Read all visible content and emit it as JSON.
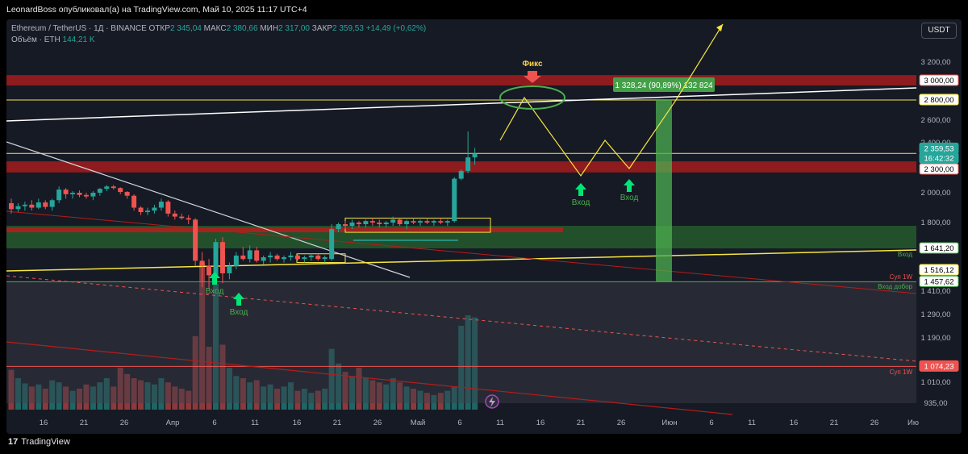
{
  "header": {
    "publish_line": "LeonardBoss опубликовал(а) на TradingView.com, Май 10, 2025 11:17 UTC+4"
  },
  "legend": {
    "symbol_line": "Ethereum / TetherUS · 1Д · BINANCE",
    "open_label": "ОТКР",
    "open_value": "2 345,04",
    "high_label": "МАКС",
    "high_value": "2 380,66",
    "low_label": "МИН",
    "low_value": "2 317,00",
    "close_label": "ЗАКР",
    "close_value": "2 359,53",
    "change": "+14,49 (+0,62%)",
    "volume_label": "Объём · ETH",
    "volume_value": "144,21 K"
  },
  "currency_button": "USDT",
  "footer": {
    "logo": "17",
    "brand": "TradingView"
  },
  "colors": {
    "background": "#161a24",
    "up": "#26a69a",
    "down": "#ef5350",
    "yellow": "#f5e642",
    "green_zone": "#4caf50",
    "red_zone": "#b71c1c"
  },
  "chart_data": {
    "type": "candlestick",
    "symbol": "ETHUSDT",
    "timeframe": "1D",
    "y_axis_labels": [
      "3 200,00",
      "2 600,00",
      "2 400,00",
      "2 000,00",
      "1 800,00",
      "1 410,00",
      "1 290,00",
      "1 190,00",
      "1 010,00",
      "935,00"
    ],
    "x_axis_labels": [
      "16",
      "21",
      "26",
      "Апр",
      "6",
      "11",
      "16",
      "21",
      "26",
      "Май",
      "6",
      "11",
      "16",
      "21",
      "26",
      "Июн",
      "6",
      "11",
      "16",
      "21",
      "26",
      "Ию"
    ],
    "price_badges": [
      {
        "value": 3000,
        "label": "3 000,00"
      },
      {
        "value": 2800,
        "label": "2 800,00"
      },
      {
        "value": 2359.53,
        "label": "2 359,53"
      },
      {
        "value": 2359.53,
        "label": "16:42:32"
      },
      {
        "value": 2300,
        "label": "2 300,00"
      },
      {
        "value": 1641.2,
        "label": "1 641,20"
      },
      {
        "value": 1516.12,
        "label": "1 516,12"
      },
      {
        "value": 1457.62,
        "label": "1 457,62"
      },
      {
        "value": 1074.23,
        "label": "1 074,23"
      }
    ],
    "candles": [
      {
        "o": 1930,
        "h": 1960,
        "l": 1860,
        "c": 1890
      },
      {
        "o": 1890,
        "h": 1930,
        "l": 1870,
        "c": 1910
      },
      {
        "o": 1910,
        "h": 1940,
        "l": 1880,
        "c": 1920
      },
      {
        "o": 1920,
        "h": 1950,
        "l": 1880,
        "c": 1900
      },
      {
        "o": 1900,
        "h": 1960,
        "l": 1890,
        "c": 1935
      },
      {
        "o": 1935,
        "h": 1950,
        "l": 1890,
        "c": 1905
      },
      {
        "o": 1905,
        "h": 1960,
        "l": 1880,
        "c": 1950
      },
      {
        "o": 1950,
        "h": 2080,
        "l": 1930,
        "c": 2040
      },
      {
        "o": 2040,
        "h": 2060,
        "l": 1960,
        "c": 1990
      },
      {
        "o": 1990,
        "h": 2020,
        "l": 1960,
        "c": 2000
      },
      {
        "o": 2000,
        "h": 2030,
        "l": 1970,
        "c": 1985
      },
      {
        "o": 1985,
        "h": 2000,
        "l": 1960,
        "c": 1975
      },
      {
        "o": 1975,
        "h": 2020,
        "l": 1950,
        "c": 2000
      },
      {
        "o": 2000,
        "h": 2060,
        "l": 1980,
        "c": 2050
      },
      {
        "o": 2050,
        "h": 2100,
        "l": 2020,
        "c": 2080
      },
      {
        "o": 2080,
        "h": 2100,
        "l": 2040,
        "c": 2060
      },
      {
        "o": 2060,
        "h": 2070,
        "l": 1990,
        "c": 2010
      },
      {
        "o": 2010,
        "h": 2020,
        "l": 1960,
        "c": 1980
      },
      {
        "o": 1980,
        "h": 1990,
        "l": 1880,
        "c": 1900
      },
      {
        "o": 1900,
        "h": 1910,
        "l": 1850,
        "c": 1870
      },
      {
        "o": 1870,
        "h": 1900,
        "l": 1850,
        "c": 1880
      },
      {
        "o": 1880,
        "h": 1920,
        "l": 1860,
        "c": 1900
      },
      {
        "o": 1900,
        "h": 1960,
        "l": 1880,
        "c": 1940
      },
      {
        "o": 1940,
        "h": 1950,
        "l": 1840,
        "c": 1860
      },
      {
        "o": 1860,
        "h": 1880,
        "l": 1820,
        "c": 1840
      },
      {
        "o": 1840,
        "h": 1860,
        "l": 1820,
        "c": 1830
      },
      {
        "o": 1830,
        "h": 1850,
        "l": 1790,
        "c": 1820
      },
      {
        "o": 1820,
        "h": 1830,
        "l": 1540,
        "c": 1570
      },
      {
        "o": 1570,
        "h": 1620,
        "l": 1430,
        "c": 1540
      },
      {
        "o": 1540,
        "h": 1580,
        "l": 1420,
        "c": 1490
      },
      {
        "o": 1490,
        "h": 1700,
        "l": 1470,
        "c": 1680
      },
      {
        "o": 1680,
        "h": 1710,
        "l": 1450,
        "c": 1500
      },
      {
        "o": 1500,
        "h": 1560,
        "l": 1470,
        "c": 1540
      },
      {
        "o": 1540,
        "h": 1620,
        "l": 1520,
        "c": 1600
      },
      {
        "o": 1600,
        "h": 1650,
        "l": 1570,
        "c": 1580
      },
      {
        "o": 1580,
        "h": 1660,
        "l": 1560,
        "c": 1630
      },
      {
        "o": 1630,
        "h": 1650,
        "l": 1560,
        "c": 1570
      },
      {
        "o": 1570,
        "h": 1600,
        "l": 1550,
        "c": 1590
      },
      {
        "o": 1590,
        "h": 1620,
        "l": 1560,
        "c": 1600
      },
      {
        "o": 1600,
        "h": 1610,
        "l": 1570,
        "c": 1580
      },
      {
        "o": 1580,
        "h": 1600,
        "l": 1560,
        "c": 1590
      },
      {
        "o": 1590,
        "h": 1620,
        "l": 1570,
        "c": 1600
      },
      {
        "o": 1600,
        "h": 1610,
        "l": 1570,
        "c": 1580
      },
      {
        "o": 1580,
        "h": 1600,
        "l": 1560,
        "c": 1590
      },
      {
        "o": 1590,
        "h": 1610,
        "l": 1570,
        "c": 1600
      },
      {
        "o": 1600,
        "h": 1610,
        "l": 1570,
        "c": 1580
      },
      {
        "o": 1580,
        "h": 1600,
        "l": 1560,
        "c": 1590
      },
      {
        "o": 1580,
        "h": 1790,
        "l": 1570,
        "c": 1760
      },
      {
        "o": 1760,
        "h": 1800,
        "l": 1740,
        "c": 1790
      },
      {
        "o": 1790,
        "h": 1810,
        "l": 1760,
        "c": 1780
      },
      {
        "o": 1780,
        "h": 1820,
        "l": 1760,
        "c": 1800
      },
      {
        "o": 1800,
        "h": 1810,
        "l": 1770,
        "c": 1790
      },
      {
        "o": 1790,
        "h": 1820,
        "l": 1770,
        "c": 1810
      },
      {
        "o": 1810,
        "h": 1830,
        "l": 1780,
        "c": 1800
      },
      {
        "o": 1800,
        "h": 1820,
        "l": 1770,
        "c": 1790
      },
      {
        "o": 1790,
        "h": 1810,
        "l": 1770,
        "c": 1800
      },
      {
        "o": 1800,
        "h": 1840,
        "l": 1780,
        "c": 1820
      },
      {
        "o": 1820,
        "h": 1830,
        "l": 1780,
        "c": 1790
      },
      {
        "o": 1790,
        "h": 1820,
        "l": 1760,
        "c": 1810
      },
      {
        "o": 1810,
        "h": 1830,
        "l": 1790,
        "c": 1800
      },
      {
        "o": 1800,
        "h": 1820,
        "l": 1780,
        "c": 1810
      },
      {
        "o": 1810,
        "h": 1830,
        "l": 1790,
        "c": 1800
      },
      {
        "o": 1800,
        "h": 1820,
        "l": 1780,
        "c": 1810
      },
      {
        "o": 1810,
        "h": 1830,
        "l": 1790,
        "c": 1800
      },
      {
        "o": 1800,
        "h": 1820,
        "l": 1780,
        "c": 1810
      },
      {
        "o": 1810,
        "h": 2200,
        "l": 1800,
        "c": 2180
      },
      {
        "o": 2180,
        "h": 2300,
        "l": 2160,
        "c": 2280
      },
      {
        "o": 2280,
        "h": 2500,
        "l": 2250,
        "c": 2345
      },
      {
        "o": 2345,
        "h": 2380.66,
        "l": 2317,
        "c": 2359.53
      }
    ],
    "volume": [
      38,
      30,
      25,
      22,
      24,
      20,
      28,
      26,
      22,
      18,
      20,
      24,
      22,
      26,
      30,
      22,
      40,
      34,
      30,
      28,
      26,
      24,
      30,
      26,
      22,
      20,
      18,
      70,
      140,
      60,
      120,
      62,
      40,
      32,
      30,
      26,
      28,
      22,
      24,
      20,
      22,
      26,
      18,
      20,
      16,
      18,
      20,
      58,
      44,
      36,
      32,
      40,
      30,
      28,
      26,
      24,
      30,
      26,
      22,
      20,
      18,
      16,
      14,
      16,
      18,
      22,
      80,
      90,
      88
    ],
    "levels": [
      {
        "name": "",
        "value": 2300,
        "style": "red-zone"
      },
      {
        "name": "",
        "value": 2360,
        "style": "yellow-line"
      },
      {
        "name": "",
        "value": 2800,
        "style": "yellow-line"
      },
      {
        "name": "",
        "value": 3000,
        "style": "red-zone"
      },
      {
        "name": "",
        "value": 1641.2,
        "style": "green-zone"
      },
      {
        "name": "",
        "value": 1457.62,
        "style": "green-line"
      },
      {
        "name": "",
        "value": 1074.23,
        "style": "red-line"
      }
    ],
    "measure_label": "1 328,24 (90,89%) 132 824",
    "annotations": [
      {
        "text": "Фикс"
      },
      {
        "text": "Вход"
      },
      {
        "text": "Вход"
      },
      {
        "text": "Вход"
      },
      {
        "text": "Вход"
      },
      {
        "text": "Вход"
      },
      {
        "text": "Суп 1W"
      },
      {
        "text": "Вход добор"
      },
      {
        "text": "Суп 1W"
      }
    ],
    "grid": false,
    "legend_position": "top-left"
  }
}
